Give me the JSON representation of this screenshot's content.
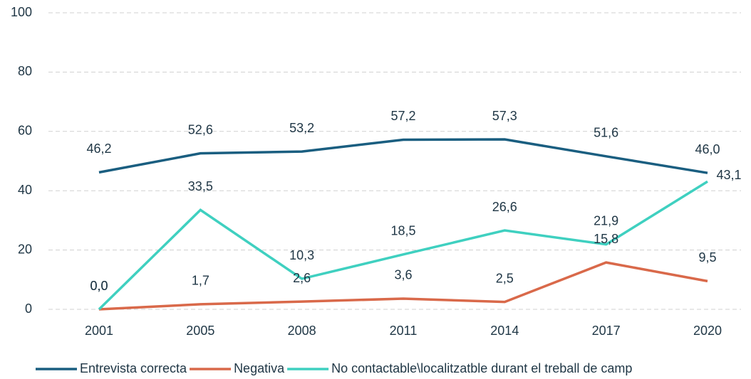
{
  "chart_data": {
    "type": "line",
    "categories": [
      "2001",
      "2005",
      "2008",
      "2011",
      "2014",
      "2017",
      "2020"
    ],
    "series": [
      {
        "name": "Entrevista correcta",
        "color": "#1a5e80",
        "values": [
          46.2,
          52.6,
          53.2,
          57.2,
          57.3,
          51.6,
          46.0
        ],
        "value_labels": [
          "46,2",
          "52,6",
          "53,2",
          "57,2",
          "57,3",
          "51,6",
          "46,0"
        ]
      },
      {
        "name": "Negativa",
        "color": "#d9694a",
        "values": [
          0.0,
          1.7,
          2.6,
          3.6,
          2.5,
          15.8,
          9.5
        ],
        "value_labels": [
          "0,0",
          "1,7",
          "2,6",
          "3,6",
          "2,5",
          "15,8",
          "9,5"
        ]
      },
      {
        "name": "No contactable\\localitzatble durant el treball de camp",
        "color": "#3fd0c0",
        "values": [
          0.0,
          33.5,
          10.3,
          18.5,
          26.6,
          21.9,
          43.1
        ],
        "value_labels": [
          "0,0",
          "33,5",
          "10,3",
          "18,5",
          "26,6",
          "21,9",
          "43,1"
        ]
      }
    ],
    "ylim": [
      0,
      100
    ],
    "yticks": [
      0,
      20,
      40,
      60,
      80,
      100
    ],
    "grid": true,
    "legend": "bottom"
  }
}
